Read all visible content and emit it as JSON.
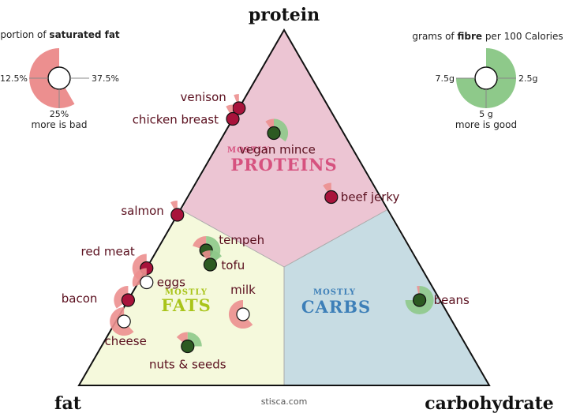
{
  "corners": {
    "top": "protein",
    "left": "fat",
    "right": "carbohydrate"
  },
  "regions": {
    "proteins": {
      "small": "MOSTLY",
      "big": "PROTEINS"
    },
    "fats": {
      "small": "MOSTLY",
      "big": "FATS"
    },
    "carbs": {
      "small": "MOSTLY",
      "big": "CARBS"
    }
  },
  "legend_left": {
    "title_prefix": "portion of ",
    "title_bold": "saturated fat",
    "tick_left": "12.5%",
    "tick_right": "37.5%",
    "tick_bottom": "25%",
    "note": "more is bad"
  },
  "legend_right": {
    "title_prefix": "grams of ",
    "title_bold": "fibre",
    "title_suffix": " per 100 Calories",
    "tick_left": "7.5g",
    "tick_right": "2.5g",
    "tick_bottom": "5 g",
    "note": "more is good"
  },
  "credit": "stisca.com",
  "colors": {
    "protein_region": "#ecc5d3",
    "fat_region": "#f5f9dc",
    "carb_region": "#c7dce3",
    "animal_dot": "#a8133b",
    "plant_dot": "#2c5a22",
    "sat_fat_wedge": "#ec8f8f",
    "fibre_wedge": "#8ec98a",
    "proteins_label": "#d6527f",
    "fats_label": "#a9c41a",
    "carbs_label": "#3d7fb8"
  },
  "foods": [
    {
      "label": "venison",
      "protein": 0.78,
      "fat": 0.22,
      "carb": 0.0,
      "kind": "animal",
      "sat_fat": 0.06,
      "fibre": 0
    },
    {
      "label": "chicken breast",
      "protein": 0.75,
      "fat": 0.25,
      "carb": 0.0,
      "kind": "animal",
      "sat_fat": 0.08,
      "fibre": 0
    },
    {
      "label": "vegan mince",
      "protein": 0.71,
      "fat": 0.17,
      "carb": 0.12,
      "kind": "plant",
      "sat_fat": 0.1,
      "fibre": 3.5
    },
    {
      "label": "beef jerky",
      "protein": 0.53,
      "fat": 0.12,
      "carb": 0.35,
      "kind": "animal",
      "sat_fat": 0.1,
      "fibre": 0
    },
    {
      "label": "salmon",
      "protein": 0.48,
      "fat": 0.52,
      "carb": 0.0,
      "kind": "animal",
      "sat_fat": 0.08,
      "fibre": 0
    },
    {
      "label": "tempeh",
      "protein": 0.38,
      "fat": 0.5,
      "carb": 0.12,
      "kind": "plant",
      "sat_fat": 0.2,
      "fibre": 4.0
    },
    {
      "label": "tofu",
      "protein": 0.34,
      "fat": 0.51,
      "carb": 0.15,
      "kind": "plant",
      "sat_fat": 0.1,
      "fibre": 1.5
    },
    {
      "label": "red meat",
      "protein": 0.33,
      "fat": 0.67,
      "carb": 0.0,
      "kind": "animal",
      "sat_fat": 0.4,
      "fibre": 0
    },
    {
      "label": "eggs",
      "protein": 0.29,
      "fat": 0.69,
      "carb": 0.02,
      "kind": "animal",
      "sat_fat": 0.3,
      "fibre": 0
    },
    {
      "label": "bacon",
      "protein": 0.24,
      "fat": 0.76,
      "carb": 0.0,
      "kind": "animal",
      "sat_fat": 0.35,
      "fibre": 0
    },
    {
      "label": "cheese",
      "protein": 0.18,
      "fat": 0.8,
      "carb": 0.02,
      "kind": "animal",
      "sat_fat": 0.62,
      "fibre": 0
    },
    {
      "label": "milk",
      "protein": 0.2,
      "fat": 0.5,
      "carb": 0.3,
      "kind": "animal",
      "sat_fat": 0.62,
      "fibre": 0
    },
    {
      "label": "nuts & seeds",
      "protein": 0.11,
      "fat": 0.68,
      "carb": 0.21,
      "kind": "plant",
      "sat_fat": 0.14,
      "fibre": 2.5
    },
    {
      "label": "beans",
      "protein": 0.24,
      "fat": 0.05,
      "carb": 0.71,
      "kind": "plant",
      "sat_fat": 0.03,
      "fibre": 7.5
    }
  ]
}
